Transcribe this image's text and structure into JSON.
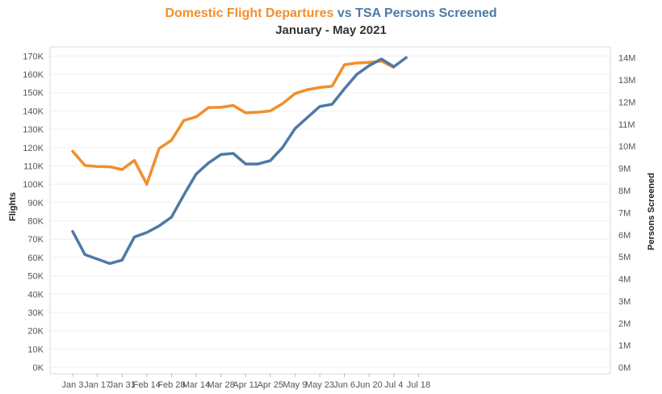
{
  "chart_data": {
    "type": "line",
    "title": {
      "part1": "Domestic Flight Departures",
      "part2": " vs ",
      "part3": "TSA Persons Screened"
    },
    "subtitle": "January - May 2021",
    "x_ticks": [
      "Jan 3",
      "Jan 17",
      "Jan 31",
      "Feb 14",
      "Feb 28",
      "Mar 14",
      "Mar 28",
      "Apr 11",
      "Apr 25",
      "May 9",
      "May 23",
      "Jun 6",
      "Jun 20",
      "Jul 4",
      "Jul 18"
    ],
    "y_left": {
      "label": "Flights",
      "ticks": [
        "0K",
        "10K",
        "20K",
        "30K",
        "40K",
        "50K",
        "60K",
        "70K",
        "80K",
        "90K",
        "100K",
        "110K",
        "120K",
        "130K",
        "140K",
        "150K",
        "160K",
        "170K"
      ],
      "range": [
        -3500,
        175000
      ]
    },
    "y_right": {
      "label": "Persons Screened",
      "ticks": [
        "0M",
        "1M",
        "2M",
        "3M",
        "4M",
        "5M",
        "6M",
        "7M",
        "8M",
        "9M",
        "10M",
        "11M",
        "12M",
        "13M",
        "14M"
      ],
      "range": [
        -290000,
        14500000
      ]
    },
    "x": [
      "Jan 3",
      "Jan 10",
      "Jan 17",
      "Jan 24",
      "Jan 31",
      "Feb 7",
      "Feb 14",
      "Feb 21",
      "Feb 28",
      "Mar 7",
      "Mar 14",
      "Mar 21",
      "Mar 28",
      "Apr 4",
      "Apr 11",
      "Apr 18",
      "Apr 25",
      "May 2",
      "May 9",
      "May 16",
      "May 23",
      "May 30",
      "Jun 6",
      "Jun 13",
      "Jun 20",
      "Jun 27",
      "Jul 4",
      "Jul 11"
    ],
    "series": [
      {
        "name": "Domestic Flight Departures",
        "axis": "left",
        "color": "#f28e2b",
        "values": [
          118000,
          110200,
          109700,
          109500,
          108000,
          113000,
          100000,
          119500,
          124000,
          134800,
          136800,
          141800,
          142000,
          143000,
          139000,
          139300,
          140000,
          144000,
          149500,
          151600,
          152800,
          153500,
          165200,
          166200,
          166500,
          167200,
          163800,
          null
        ]
      },
      {
        "name": "TSA Persons Screened",
        "axis": "right",
        "color": "#4e79a7",
        "values": [
          6150000,
          5100000,
          4900000,
          4700000,
          4850000,
          5900000,
          6100000,
          6400000,
          6800000,
          7800000,
          8750000,
          9250000,
          9630000,
          9680000,
          9200000,
          9200000,
          9350000,
          9950000,
          10800000,
          11300000,
          11800000,
          11900000,
          12600000,
          13250000,
          13650000,
          13950000,
          13600000,
          14010000
        ]
      }
    ],
    "grid": true,
    "legend": "none"
  }
}
